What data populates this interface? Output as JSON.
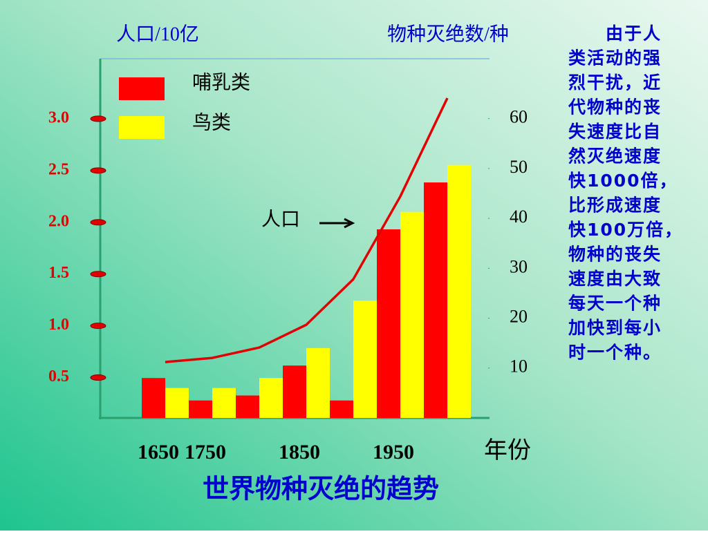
{
  "chart_data": {
    "type": "bar",
    "title": "世界物种灭绝的趋势",
    "y_label": "人口/10亿",
    "y2_label": "物种灭绝数/种",
    "x_label": "年份",
    "categories": [
      "1650",
      "1750",
      null,
      "1850",
      null,
      "1950",
      null
    ],
    "series": [
      {
        "name": "哺乳类",
        "color": "#ff0000",
        "axis": "y2",
        "values": [
          8,
          3.5,
          4.5,
          10.5,
          3.5,
          37.8,
          47.2
        ]
      },
      {
        "name": "鸟类",
        "color": "#ffff00",
        "axis": "y2",
        "values": [
          6,
          6,
          8,
          14,
          23.5,
          41.3,
          50.7
        ]
      },
      {
        "name": "人口",
        "type": "line",
        "color": "#e00000",
        "axis": "y",
        "values": [
          0.65,
          0.69,
          0.79,
          1.01,
          1.45,
          2.25,
          3.2
        ]
      }
    ],
    "ylim": [
      0.11,
      3.58
    ],
    "yticks": [
      0.5,
      {
        "value": 1,
        "label": "1.0"
      },
      1.5,
      {
        "value": 2,
        "label": "2.0"
      },
      2.5,
      {
        "value": 3,
        "label": "3.0"
      }
    ],
    "y2lim": [
      0,
      72
    ],
    "y2ticks": [
      10,
      20,
      30,
      40,
      50,
      60
    ],
    "note_lines": [
      "由于人",
      "类活动的强",
      "烈干扰，近",
      "代物种的丧",
      "失速度比自",
      "然灭绝速度",
      "快1000倍，",
      "比形成速度",
      "快100万倍，",
      "物种的丧失",
      "速度由大致",
      "每天一个种",
      "加快到每小",
      "时一个种。"
    ]
  }
}
